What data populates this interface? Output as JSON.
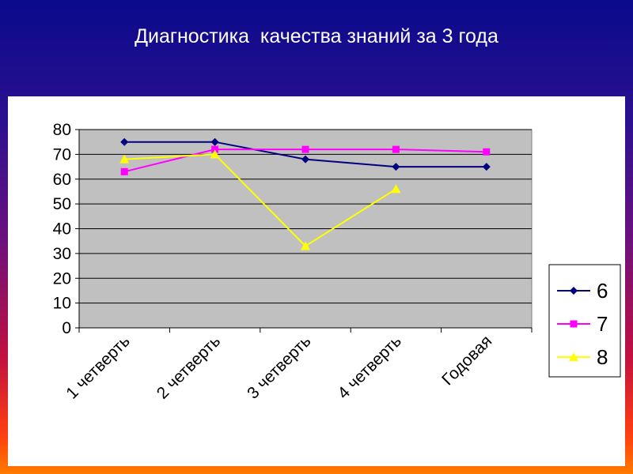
{
  "slide": {
    "title": "Диагностика  качества знаний за 3 года"
  },
  "chart_data": {
    "type": "line",
    "title": "",
    "xlabel": "",
    "ylabel": "",
    "categories": [
      "1 четверть",
      "2 четверть",
      "3 четверть",
      "4 четверть",
      "Годовая"
    ],
    "ylim": [
      0,
      80
    ],
    "yticks": [
      0,
      10,
      20,
      30,
      40,
      50,
      60,
      70,
      80
    ],
    "grid": true,
    "legend_position": "right",
    "plot_background": "#c0c0c0",
    "series": [
      {
        "name": "6",
        "values": [
          75,
          75,
          68,
          65,
          65
        ],
        "color": "#000080",
        "marker": "diamond"
      },
      {
        "name": "7",
        "values": [
          63,
          72,
          72,
          72,
          71
        ],
        "color": "#ff00ff",
        "marker": "square"
      },
      {
        "name": "8",
        "values": [
          68,
          70,
          33,
          56,
          null
        ],
        "color": "#ffff00",
        "marker": "triangle"
      }
    ]
  }
}
